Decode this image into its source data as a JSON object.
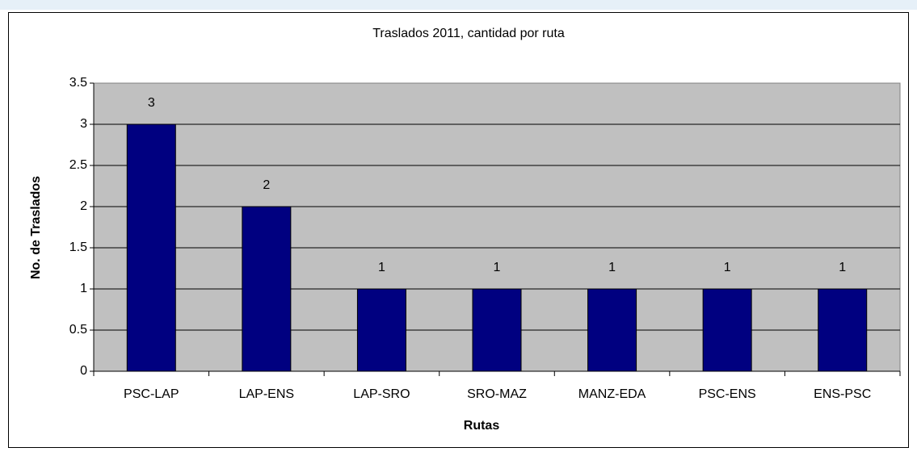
{
  "chart_data": {
    "type": "bar",
    "title": "Traslados 2011, cantidad por ruta",
    "x_label": "Rutas",
    "y_label": "No. de Traslados",
    "categories": [
      "PSC-LAP",
      "LAP-ENS",
      "LAP-SRO",
      "SRO-MAZ",
      "MANZ-EDA",
      "PSC-ENS",
      "ENS-PSC"
    ],
    "values": [
      3,
      2,
      1,
      1,
      1,
      1,
      1
    ],
    "color": "#000080",
    "ylim": [
      0,
      3.5
    ],
    "yticks": [
      0,
      0.5,
      1,
      1.5,
      2,
      2.5,
      3,
      3.5
    ],
    "grid": true
  }
}
